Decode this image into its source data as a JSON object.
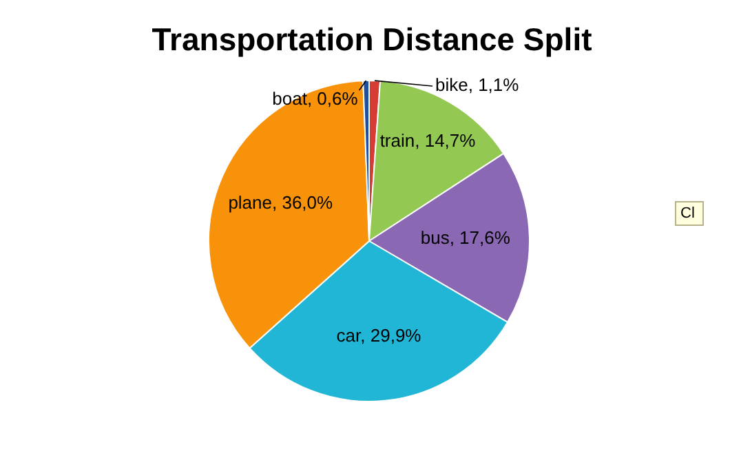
{
  "chart_data": {
    "type": "pie",
    "title": "Transportation Distance Split",
    "categories": [
      "bike",
      "train",
      "bus",
      "car",
      "plane",
      "boat"
    ],
    "values": [
      1.1,
      14.7,
      17.6,
      29.9,
      36.0,
      0.6
    ],
    "value_labels": [
      "1,1%",
      "14,7%",
      "17,6%",
      "29,9%",
      "36,0%",
      "0,6%"
    ],
    "colors": [
      "#d63b34",
      "#93c952",
      "#8a68b4",
      "#21b5d6",
      "#f7920a",
      "#1f4f9e"
    ],
    "legend": false,
    "annotations": [
      "Cl"
    ]
  }
}
